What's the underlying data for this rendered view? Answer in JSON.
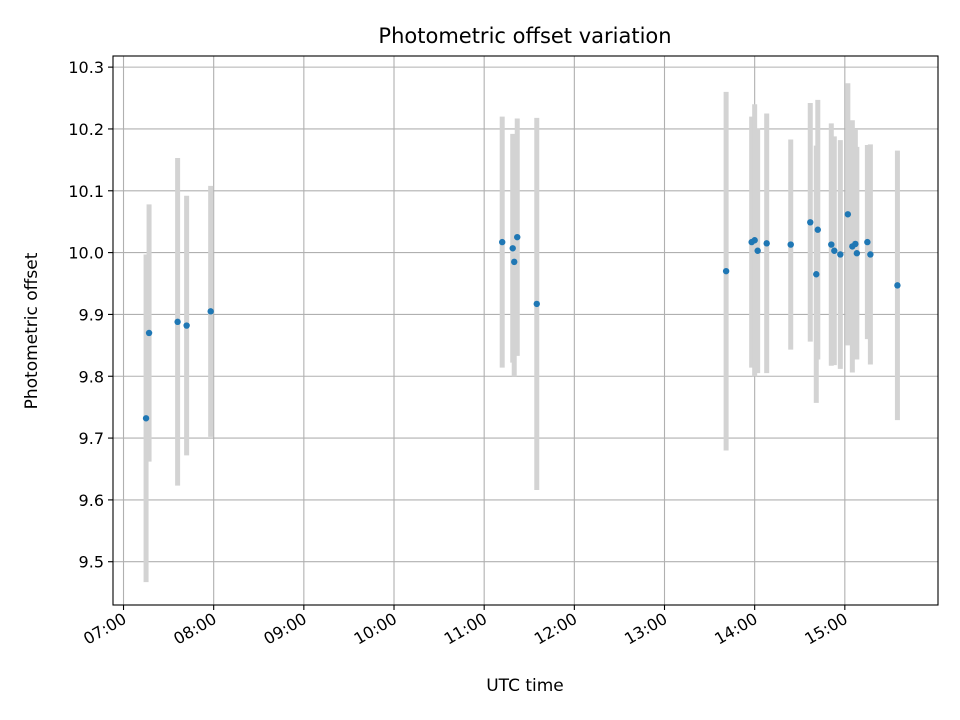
{
  "chart_data": {
    "type": "scatter",
    "title": "Photometric offset variation",
    "xlabel": "UTC time",
    "ylabel": "Photometric offset",
    "x_unit": "UTC time of day (HH:MM)",
    "xlim": [
      "06:53",
      "16:02"
    ],
    "ylim": [
      9.43,
      10.318
    ],
    "x_ticks": [
      "07:00",
      "08:00",
      "09:00",
      "10:00",
      "11:00",
      "12:00",
      "13:00",
      "14:00",
      "15:00"
    ],
    "y_ticks": [
      9.5,
      9.6,
      9.7,
      9.8,
      9.9,
      10.0,
      10.1,
      10.2,
      10.3
    ],
    "y_tick_labels": [
      "9.5",
      "9.6",
      "9.7",
      "9.8",
      "9.9",
      "10.0",
      "10.1",
      "10.2",
      "10.3"
    ],
    "grid": true,
    "legend": "none",
    "marker_color": "#1f77b4",
    "errorbar_color": "#d3d3d3",
    "points": [
      {
        "x": "07:15",
        "y": 9.732,
        "yerr": 0.265
      },
      {
        "x": "07:17",
        "y": 9.87,
        "yerr": 0.208
      },
      {
        "x": "07:36",
        "y": 9.888,
        "yerr": 0.265
      },
      {
        "x": "07:42",
        "y": 9.882,
        "yerr": 0.21
      },
      {
        "x": "07:58",
        "y": 9.905,
        "yerr": 0.203
      },
      {
        "x": "11:12",
        "y": 10.017,
        "yerr": 0.203
      },
      {
        "x": "11:19",
        "y": 10.007,
        "yerr": 0.185
      },
      {
        "x": "11:20",
        "y": 9.985,
        "yerr": 0.185
      },
      {
        "x": "11:22",
        "y": 10.025,
        "yerr": 0.192
      },
      {
        "x": "11:35",
        "y": 9.917,
        "yerr": 0.301
      },
      {
        "x": "13:41",
        "y": 9.97,
        "yerr": 0.29
      },
      {
        "x": "13:58",
        "y": 10.017,
        "yerr": 0.203
      },
      {
        "x": "14:00",
        "y": 10.02,
        "yerr": 0.22
      },
      {
        "x": "14:02",
        "y": 10.003,
        "yerr": 0.198
      },
      {
        "x": "14:08",
        "y": 10.015,
        "yerr": 0.21
      },
      {
        "x": "14:24",
        "y": 10.013,
        "yerr": 0.17
      },
      {
        "x": "14:37",
        "y": 10.049,
        "yerr": 0.193
      },
      {
        "x": "14:41",
        "y": 9.965,
        "yerr": 0.208
      },
      {
        "x": "14:42",
        "y": 10.037,
        "yerr": 0.21
      },
      {
        "x": "14:51",
        "y": 10.013,
        "yerr": 0.196
      },
      {
        "x": "14:53",
        "y": 10.003,
        "yerr": 0.185
      },
      {
        "x": "14:57",
        "y": 9.997,
        "yerr": 0.185
      },
      {
        "x": "15:02",
        "y": 10.062,
        "yerr": 0.212
      },
      {
        "x": "15:05",
        "y": 10.01,
        "yerr": 0.204
      },
      {
        "x": "15:07",
        "y": 10.014,
        "yerr": 0.186
      },
      {
        "x": "15:08",
        "y": 9.999,
        "yerr": 0.172
      },
      {
        "x": "15:15",
        "y": 10.017,
        "yerr": 0.157
      },
      {
        "x": "15:17",
        "y": 9.997,
        "yerr": 0.178
      },
      {
        "x": "15:35",
        "y": 9.947,
        "yerr": 0.218
      }
    ]
  }
}
